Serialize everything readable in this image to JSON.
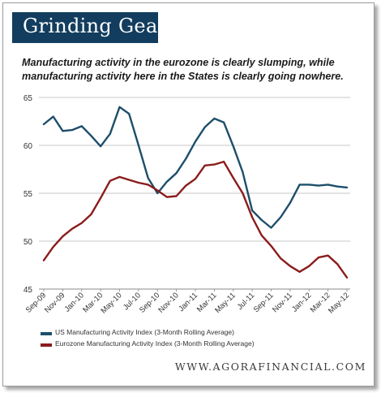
{
  "header": {
    "title": "Grinding Gears",
    "subtitle": "Manufacturing activity in the eurozone is clearly slumping, while manufacturing activity here in the States is clearly going nowhere."
  },
  "footer": {
    "url": "WWW.AGORAFINANCIAL.COM"
  },
  "colors": {
    "us": "#1d4e6b",
    "eurozone": "#8b1c1c",
    "title_bg": "#123d5e",
    "grid": "#b5b5b5"
  },
  "chart_data": {
    "type": "line",
    "title": "",
    "xlabel": "",
    "ylabel": "",
    "ylim": [
      45,
      65
    ],
    "yticks": [
      45,
      50,
      55,
      60,
      65
    ],
    "grid": true,
    "legend_position": "bottom",
    "x": [
      "Sep-09",
      "Oct-09",
      "Nov-09",
      "Dec-09",
      "Jan-10",
      "Feb-10",
      "Mar-10",
      "Apr-10",
      "May-10",
      "Jun-10",
      "Jul-10",
      "Aug-10",
      "Sep-10",
      "Oct-10",
      "Nov-10",
      "Dec-10",
      "Jan-11",
      "Feb-11",
      "Mar-11",
      "Apr-11",
      "May-11",
      "Jun-11",
      "Jul-11",
      "Aug-11",
      "Sep-11",
      "Oct-11",
      "Nov-11",
      "Dec-11",
      "Jan-12",
      "Feb-12",
      "Mar-12",
      "Apr-12",
      "May-12"
    ],
    "xtick_labels": [
      "Sep-09",
      "Nov-09",
      "Jan-10",
      "Mar-10",
      "May-10",
      "Jul-10",
      "Sep-10",
      "Nov-10",
      "Jan-11",
      "Mar-11",
      "May-11",
      "Jul-11",
      "Sep-11",
      "Nov-11",
      "Jan-12",
      "Mar-12",
      "May-12"
    ],
    "series": [
      {
        "name": "US Manufacturing Activity Index (3-Month Rolling Average)",
        "values": [
          62.2,
          63.0,
          61.5,
          61.6,
          62.0,
          61.0,
          59.9,
          61.2,
          64.0,
          63.3,
          60.0,
          56.6,
          55.0,
          56.2,
          57.1,
          58.6,
          60.4,
          61.9,
          62.8,
          62.4,
          59.9,
          57.2,
          53.2,
          52.2,
          51.4,
          52.5,
          54.0,
          55.9,
          55.9,
          55.8,
          55.9,
          55.7,
          55.6
        ]
      },
      {
        "name": "Eurozone Manufacturing Activity Index (3-Month Rolling Average)",
        "values": [
          48.0,
          49.4,
          50.5,
          51.3,
          51.9,
          52.8,
          54.5,
          56.3,
          56.7,
          56.4,
          56.1,
          55.9,
          55.3,
          54.6,
          54.7,
          55.8,
          56.5,
          57.9,
          58.0,
          58.3,
          56.6,
          55.0,
          52.5,
          50.6,
          49.5,
          48.2,
          47.4,
          46.8,
          47.4,
          48.3,
          48.5,
          47.6,
          46.2
        ]
      }
    ]
  }
}
